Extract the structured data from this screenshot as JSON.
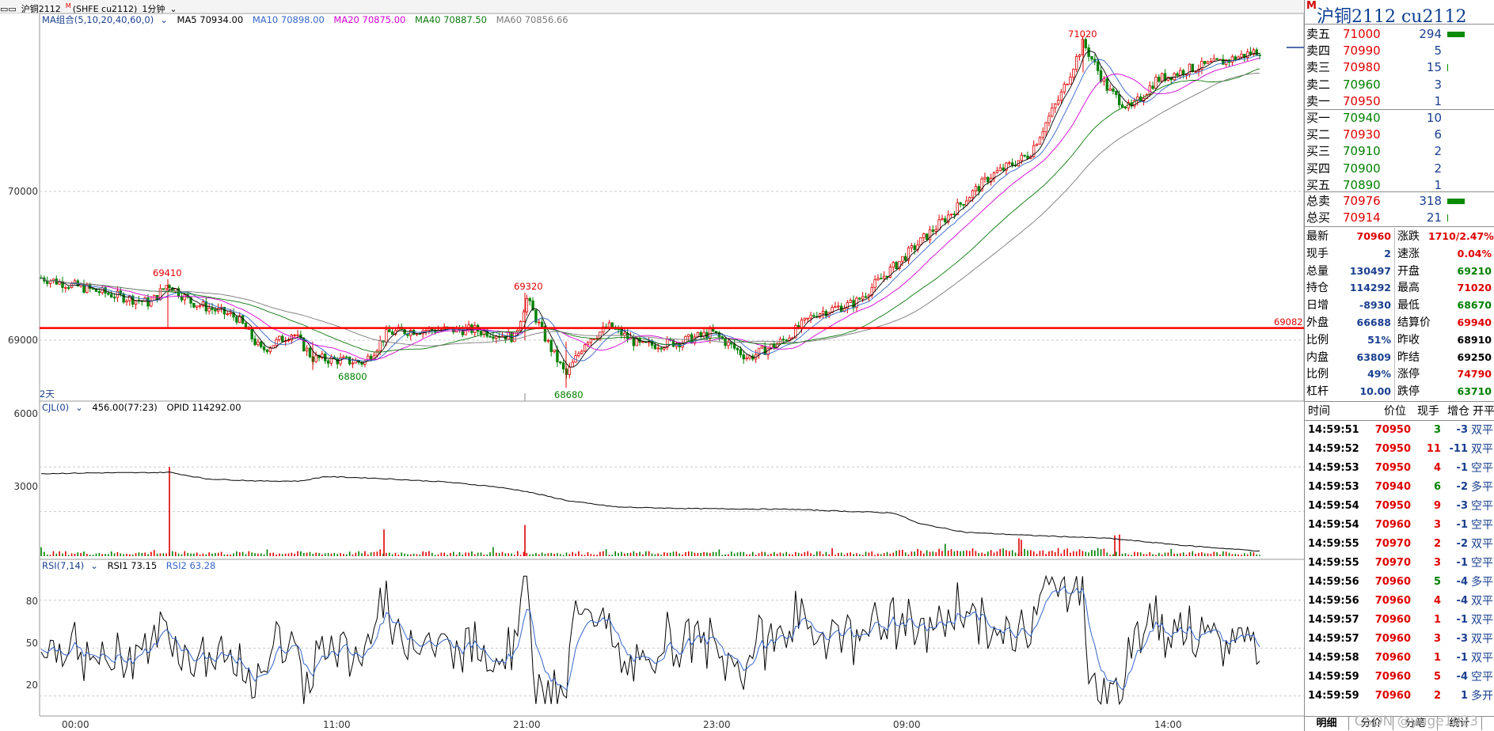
{
  "title_bar": {
    "left_text": "沪铜2112",
    "m_mark": "M",
    "sub": "(SHFE cu2112)",
    "period": "1分钟"
  },
  "main_legend": {
    "label": "MA组合(5,10,20,40,60,0)",
    "items": [
      {
        "text": "MA5 70934.00",
        "color": "#000000"
      },
      {
        "text": "MA10 70898.00",
        "color": "#3465c9"
      },
      {
        "text": "MA20 70875.00",
        "color": "#d400d4"
      },
      {
        "text": "MA40 70887.50",
        "color": "#0a7a0a"
      },
      {
        "text": "MA60 70856.66",
        "color": "#7a7a7a"
      }
    ]
  },
  "main_axis": {
    "ticks": [
      "70000",
      "69000"
    ],
    "values": [
      70000,
      69000
    ]
  },
  "annotations": {
    "high1": "69410",
    "low1": "68800",
    "high2": "69320",
    "low2": "68680",
    "high3": "71020",
    "line_level": "69082",
    "days": "2天"
  },
  "volume_legend": {
    "label": "CJL(0)",
    "value": "456.00(77:23)",
    "opid": "OPID 114292.00"
  },
  "volume_axis": {
    "ticks": [
      "6000",
      "3000"
    ],
    "values": [
      6000,
      3000
    ]
  },
  "rsi_legend": {
    "label": "RSI(7,14)",
    "rsi1": "RSI1 73.15",
    "rsi2": "RSI2 63.28"
  },
  "rsi_axis": {
    "ticks": [
      "80",
      "50",
      "20"
    ],
    "values": [
      80,
      50,
      20
    ]
  },
  "x_axis": {
    "ticks": [
      "00:00",
      "11:00",
      "21:00",
      "23:00",
      "09:00",
      "14:00"
    ]
  },
  "colors": {
    "up": "#e00000",
    "down": "#008000",
    "line": "#ff0000"
  },
  "chart_data": {
    "type": "candlestick",
    "title": "",
    "ylim": [
      68600,
      71150
    ],
    "key_levels": {
      "high": 71020,
      "low": 68680,
      "reference_line": 69082
    },
    "x_ticks": [
      "00:00",
      "11:00",
      "21:00",
      "23:00",
      "09:00",
      "14:00"
    ],
    "volume_ylim": [
      0,
      6300
    ],
    "rsi_ylim": [
      10,
      100
    ]
  },
  "panel": {
    "header": {
      "m": "M",
      "title": "沪铜2112  cu2112"
    },
    "asks": [
      {
        "label": "卖五",
        "price": "71000",
        "vol": "294",
        "pcolor": "#e00000",
        "bar": 22
      },
      {
        "label": "卖四",
        "price": "70990",
        "vol": "5",
        "pcolor": "#e00000",
        "bar": 0
      },
      {
        "label": "卖三",
        "price": "70980",
        "vol": "15",
        "pcolor": "#e00000",
        "bar": 1
      },
      {
        "label": "卖二",
        "price": "70960",
        "vol": "3",
        "pcolor": "#008000",
        "bar": 0
      },
      {
        "label": "卖一",
        "price": "70950",
        "vol": "1",
        "pcolor": "#e00000",
        "bar": 0
      }
    ],
    "bids": [
      {
        "label": "买一",
        "price": "70940",
        "vol": "10",
        "pcolor": "#008000"
      },
      {
        "label": "买二",
        "price": "70930",
        "vol": "6",
        "pcolor": "#e00000"
      },
      {
        "label": "买三",
        "price": "70910",
        "vol": "2",
        "pcolor": "#008000"
      },
      {
        "label": "买四",
        "price": "70900",
        "vol": "2",
        "pcolor": "#008000"
      },
      {
        "label": "买五",
        "price": "70890",
        "vol": "1",
        "pcolor": "#008000"
      }
    ],
    "totals": [
      {
        "label": "总卖",
        "price": "70976",
        "vol": "318",
        "pcolor": "#e00000",
        "bar": 22
      },
      {
        "label": "总买",
        "price": "70914",
        "vol": "21",
        "pcolor": "#e00000",
        "bar": 1
      }
    ],
    "quote_left": [
      {
        "k": "最新",
        "v": "70960",
        "c": "#e00000"
      },
      {
        "k": "现手",
        "v": "2",
        "c": "#1a3f8f"
      },
      {
        "k": "总量",
        "v": "130497",
        "c": "#1a3f8f"
      },
      {
        "k": "持仓",
        "v": "114292",
        "c": "#1a3f8f"
      },
      {
        "k": "日增",
        "v": "-8930",
        "c": "#1a3f8f"
      },
      {
        "k": "外盘",
        "v": "66688",
        "c": "#1a3f8f"
      },
      {
        "k": "比例",
        "v": "51%",
        "c": "#1a3f8f"
      },
      {
        "k": "内盘",
        "v": "63809",
        "c": "#1a3f8f"
      },
      {
        "k": "比例",
        "v": "49%",
        "c": "#1a3f8f"
      },
      {
        "k": "杠杆",
        "v": "10.00",
        "c": "#1a3f8f"
      }
    ],
    "quote_right": [
      {
        "k": "涨跌",
        "v": "1710/2.47%",
        "c": "#e00000"
      },
      {
        "k": "速涨",
        "v": "0.04%",
        "c": "#e00000"
      },
      {
        "k": "开盘",
        "v": "69210",
        "c": "#008000"
      },
      {
        "k": "最高",
        "v": "71020",
        "c": "#e00000"
      },
      {
        "k": "最低",
        "v": "68670",
        "c": "#008000"
      },
      {
        "k": "结算价",
        "v": "69940",
        "c": "#e00000"
      },
      {
        "k": "昨收",
        "v": "68910",
        "c": "#000000"
      },
      {
        "k": "昨结",
        "v": "69250",
        "c": "#000000"
      },
      {
        "k": "涨停",
        "v": "74790",
        "c": "#e00000"
      },
      {
        "k": "跌停",
        "v": "63710",
        "c": "#008000"
      }
    ],
    "trades_header": {
      "time": "时间",
      "price": "价位",
      "vol": "现手",
      "oi": "增仓",
      "type": "开平"
    },
    "trades": [
      {
        "time": "14:59:51",
        "price": "70950",
        "vol": "3",
        "oi": "-3",
        "type": "双平",
        "vc": "#008000"
      },
      {
        "time": "14:59:52",
        "price": "70950",
        "vol": "11",
        "oi": "-11",
        "type": "双平",
        "vc": "#e00000"
      },
      {
        "time": "14:59:53",
        "price": "70950",
        "vol": "4",
        "oi": "-1",
        "type": "空平",
        "vc": "#e00000"
      },
      {
        "time": "14:59:53",
        "price": "70940",
        "vol": "6",
        "oi": "-2",
        "type": "多平",
        "vc": "#008000"
      },
      {
        "time": "14:59:54",
        "price": "70950",
        "vol": "9",
        "oi": "-3",
        "type": "空平",
        "vc": "#e00000"
      },
      {
        "time": "14:59:54",
        "price": "70960",
        "vol": "3",
        "oi": "-1",
        "type": "空平",
        "vc": "#e00000"
      },
      {
        "time": "14:59:55",
        "price": "70970",
        "vol": "2",
        "oi": "-2",
        "type": "双平",
        "vc": "#e00000"
      },
      {
        "time": "14:59:55",
        "price": "70970",
        "vol": "3",
        "oi": "-1",
        "type": "空平",
        "vc": "#e00000"
      },
      {
        "time": "14:59:56",
        "price": "70960",
        "vol": "5",
        "oi": "-4",
        "type": "多平",
        "vc": "#008000"
      },
      {
        "time": "14:59:56",
        "price": "70960",
        "vol": "4",
        "oi": "-4",
        "type": "双平",
        "vc": "#e00000"
      },
      {
        "time": "14:59:57",
        "price": "70960",
        "vol": "1",
        "oi": "-1",
        "type": "双平",
        "vc": "#e00000"
      },
      {
        "time": "14:59:57",
        "price": "70960",
        "vol": "3",
        "oi": "-3",
        "type": "双平",
        "vc": "#e00000"
      },
      {
        "time": "14:59:58",
        "price": "70960",
        "vol": "1",
        "oi": "-1",
        "type": "双平",
        "vc": "#e00000"
      },
      {
        "time": "14:59:59",
        "price": "70960",
        "vol": "5",
        "oi": "-4",
        "type": "空平",
        "vc": "#e00000"
      },
      {
        "time": "14:59:59",
        "price": "70960",
        "vol": "2",
        "oi": "1",
        "type": "多开",
        "vc": "#e00000"
      }
    ],
    "tabs": [
      "明细",
      "分价",
      "分笔",
      "统计"
    ],
    "watermark": "CSDN @yuge1023"
  }
}
